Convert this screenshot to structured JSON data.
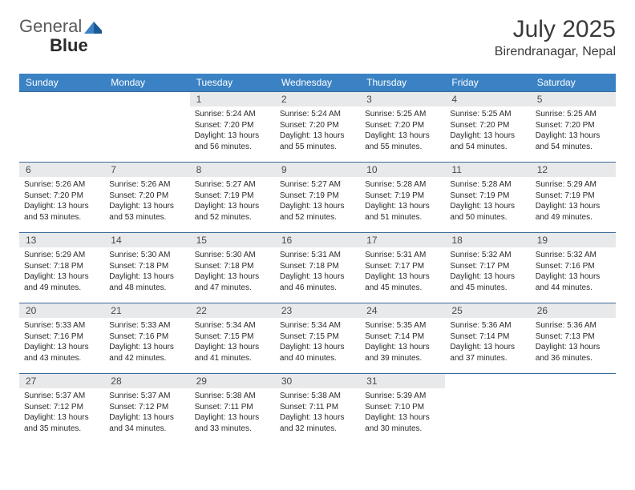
{
  "logo": {
    "text1": "General",
    "text2": "Blue"
  },
  "title": "July 2025",
  "location": "Birendranagar, Nepal",
  "colors": {
    "header_bg": "#3b82c4",
    "header_text": "#ffffff",
    "daynum_bg": "#e8e9ea",
    "daynum_text": "#4a4a4a",
    "rule": "#3a6a9a",
    "logo_accent": "#3b82c4"
  },
  "dayNames": [
    "Sunday",
    "Monday",
    "Tuesday",
    "Wednesday",
    "Thursday",
    "Friday",
    "Saturday"
  ],
  "startOffset": 2,
  "days": [
    {
      "n": "1",
      "sunrise": "Sunrise: 5:24 AM",
      "sunset": "Sunset: 7:20 PM",
      "daylight": "Daylight: 13 hours and 56 minutes."
    },
    {
      "n": "2",
      "sunrise": "Sunrise: 5:24 AM",
      "sunset": "Sunset: 7:20 PM",
      "daylight": "Daylight: 13 hours and 55 minutes."
    },
    {
      "n": "3",
      "sunrise": "Sunrise: 5:25 AM",
      "sunset": "Sunset: 7:20 PM",
      "daylight": "Daylight: 13 hours and 55 minutes."
    },
    {
      "n": "4",
      "sunrise": "Sunrise: 5:25 AM",
      "sunset": "Sunset: 7:20 PM",
      "daylight": "Daylight: 13 hours and 54 minutes."
    },
    {
      "n": "5",
      "sunrise": "Sunrise: 5:25 AM",
      "sunset": "Sunset: 7:20 PM",
      "daylight": "Daylight: 13 hours and 54 minutes."
    },
    {
      "n": "6",
      "sunrise": "Sunrise: 5:26 AM",
      "sunset": "Sunset: 7:20 PM",
      "daylight": "Daylight: 13 hours and 53 minutes."
    },
    {
      "n": "7",
      "sunrise": "Sunrise: 5:26 AM",
      "sunset": "Sunset: 7:20 PM",
      "daylight": "Daylight: 13 hours and 53 minutes."
    },
    {
      "n": "8",
      "sunrise": "Sunrise: 5:27 AM",
      "sunset": "Sunset: 7:19 PM",
      "daylight": "Daylight: 13 hours and 52 minutes."
    },
    {
      "n": "9",
      "sunrise": "Sunrise: 5:27 AM",
      "sunset": "Sunset: 7:19 PM",
      "daylight": "Daylight: 13 hours and 52 minutes."
    },
    {
      "n": "10",
      "sunrise": "Sunrise: 5:28 AM",
      "sunset": "Sunset: 7:19 PM",
      "daylight": "Daylight: 13 hours and 51 minutes."
    },
    {
      "n": "11",
      "sunrise": "Sunrise: 5:28 AM",
      "sunset": "Sunset: 7:19 PM",
      "daylight": "Daylight: 13 hours and 50 minutes."
    },
    {
      "n": "12",
      "sunrise": "Sunrise: 5:29 AM",
      "sunset": "Sunset: 7:19 PM",
      "daylight": "Daylight: 13 hours and 49 minutes."
    },
    {
      "n": "13",
      "sunrise": "Sunrise: 5:29 AM",
      "sunset": "Sunset: 7:18 PM",
      "daylight": "Daylight: 13 hours and 49 minutes."
    },
    {
      "n": "14",
      "sunrise": "Sunrise: 5:30 AM",
      "sunset": "Sunset: 7:18 PM",
      "daylight": "Daylight: 13 hours and 48 minutes."
    },
    {
      "n": "15",
      "sunrise": "Sunrise: 5:30 AM",
      "sunset": "Sunset: 7:18 PM",
      "daylight": "Daylight: 13 hours and 47 minutes."
    },
    {
      "n": "16",
      "sunrise": "Sunrise: 5:31 AM",
      "sunset": "Sunset: 7:18 PM",
      "daylight": "Daylight: 13 hours and 46 minutes."
    },
    {
      "n": "17",
      "sunrise": "Sunrise: 5:31 AM",
      "sunset": "Sunset: 7:17 PM",
      "daylight": "Daylight: 13 hours and 45 minutes."
    },
    {
      "n": "18",
      "sunrise": "Sunrise: 5:32 AM",
      "sunset": "Sunset: 7:17 PM",
      "daylight": "Daylight: 13 hours and 45 minutes."
    },
    {
      "n": "19",
      "sunrise": "Sunrise: 5:32 AM",
      "sunset": "Sunset: 7:16 PM",
      "daylight": "Daylight: 13 hours and 44 minutes."
    },
    {
      "n": "20",
      "sunrise": "Sunrise: 5:33 AM",
      "sunset": "Sunset: 7:16 PM",
      "daylight": "Daylight: 13 hours and 43 minutes."
    },
    {
      "n": "21",
      "sunrise": "Sunrise: 5:33 AM",
      "sunset": "Sunset: 7:16 PM",
      "daylight": "Daylight: 13 hours and 42 minutes."
    },
    {
      "n": "22",
      "sunrise": "Sunrise: 5:34 AM",
      "sunset": "Sunset: 7:15 PM",
      "daylight": "Daylight: 13 hours and 41 minutes."
    },
    {
      "n": "23",
      "sunrise": "Sunrise: 5:34 AM",
      "sunset": "Sunset: 7:15 PM",
      "daylight": "Daylight: 13 hours and 40 minutes."
    },
    {
      "n": "24",
      "sunrise": "Sunrise: 5:35 AM",
      "sunset": "Sunset: 7:14 PM",
      "daylight": "Daylight: 13 hours and 39 minutes."
    },
    {
      "n": "25",
      "sunrise": "Sunrise: 5:36 AM",
      "sunset": "Sunset: 7:14 PM",
      "daylight": "Daylight: 13 hours and 37 minutes."
    },
    {
      "n": "26",
      "sunrise": "Sunrise: 5:36 AM",
      "sunset": "Sunset: 7:13 PM",
      "daylight": "Daylight: 13 hours and 36 minutes."
    },
    {
      "n": "27",
      "sunrise": "Sunrise: 5:37 AM",
      "sunset": "Sunset: 7:12 PM",
      "daylight": "Daylight: 13 hours and 35 minutes."
    },
    {
      "n": "28",
      "sunrise": "Sunrise: 5:37 AM",
      "sunset": "Sunset: 7:12 PM",
      "daylight": "Daylight: 13 hours and 34 minutes."
    },
    {
      "n": "29",
      "sunrise": "Sunrise: 5:38 AM",
      "sunset": "Sunset: 7:11 PM",
      "daylight": "Daylight: 13 hours and 33 minutes."
    },
    {
      "n": "30",
      "sunrise": "Sunrise: 5:38 AM",
      "sunset": "Sunset: 7:11 PM",
      "daylight": "Daylight: 13 hours and 32 minutes."
    },
    {
      "n": "31",
      "sunrise": "Sunrise: 5:39 AM",
      "sunset": "Sunset: 7:10 PM",
      "daylight": "Daylight: 13 hours and 30 minutes."
    }
  ]
}
